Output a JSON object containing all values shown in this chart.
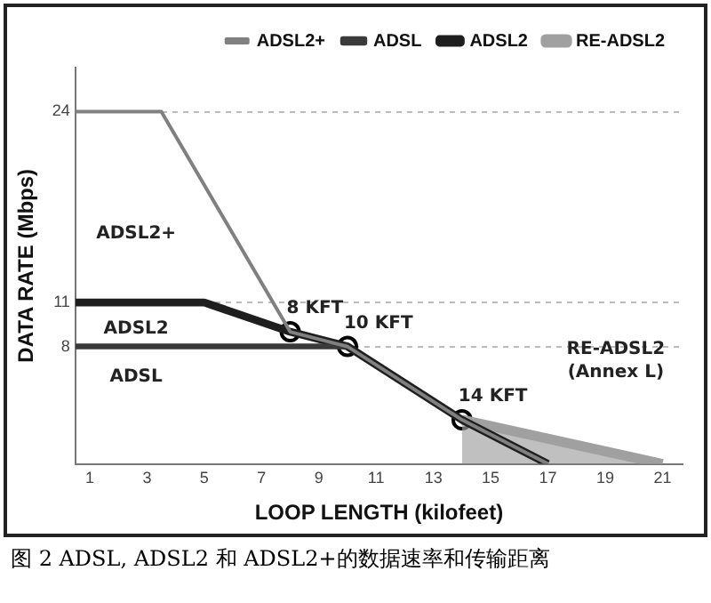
{
  "chart_data": {
    "type": "line",
    "xlabel": "LOOP LENGTH (kilofeet)",
    "ylabel": "DATA RATE (Mbps)",
    "xlim": [
      0.5,
      21.7
    ],
    "xticks": [
      1,
      3,
      5,
      7,
      9,
      11,
      13,
      15,
      17,
      19,
      21
    ],
    "ylim": [
      0,
      27
    ],
    "yticks": [
      8,
      11,
      24
    ],
    "grid": "y",
    "legend": "top right",
    "marker": "none",
    "series": [
      {
        "name": "ADSL2+",
        "color": "#808080",
        "x": [
          0.5,
          3.5,
          8,
          10,
          14,
          17
        ],
        "values": [
          24,
          24,
          9,
          8,
          3,
          0
        ]
      },
      {
        "name": "ADSL",
        "color": "#3a3a3a",
        "x": [
          0.5,
          10
        ],
        "values": [
          8,
          8
        ]
      },
      {
        "name": "ADSL2",
        "color": "#1e1e1e",
        "x": [
          0.5,
          5,
          8,
          10,
          14,
          17
        ],
        "values": [
          11,
          11,
          9,
          8,
          3,
          0
        ]
      },
      {
        "name": "RE-ADSL2",
        "type": "area",
        "color": "#a0a0a0",
        "x": [
          14,
          21
        ],
        "values": [
          3,
          0
        ]
      },
      {
        "type": "scatter",
        "marker": "circle",
        "color": "#ffffff",
        "x": [
          8,
          10,
          14
        ],
        "values": [
          9,
          8,
          3
        ]
      }
    ],
    "annotations": [
      "ADSL2+",
      "ADSL2",
      "ADSL",
      {
        "text": "8 KFT",
        "x": 8,
        "y": 9
      },
      {
        "text": "10 KFT",
        "x": 10,
        "y": 8
      },
      {
        "text": "14 KFT",
        "x": 14,
        "y": 3
      },
      "RE-ADSL2",
      "(Annex L)",
      "图 2 ADSL, ADSL2 和 ADSL2+的数据速率和传输距离"
    ]
  }
}
